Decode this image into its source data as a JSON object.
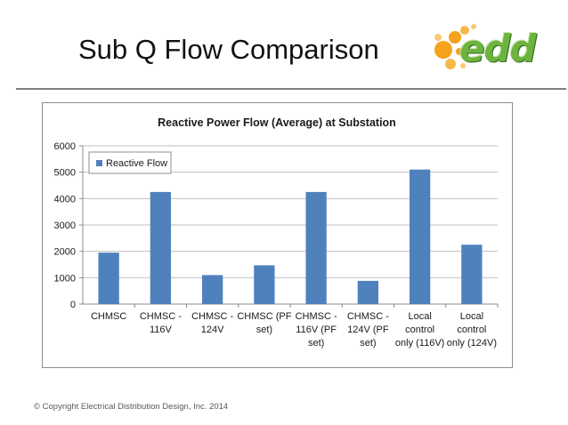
{
  "slide": {
    "title": "Sub Q Flow Comparison",
    "footer": "© Copyright Electrical Distribution Design, Inc. 2014"
  },
  "logo": {
    "text": "edd",
    "colors": {
      "dots": "#f5a21c",
      "letters": "#6db33f"
    }
  },
  "chart_data": {
    "type": "bar",
    "title": "Reactive Power Flow (Average) at Substation",
    "xlabel": "",
    "ylabel": "",
    "categories": [
      [
        "CHMSC"
      ],
      [
        "CHMSC -",
        "116V"
      ],
      [
        "CHMSC -",
        "124V"
      ],
      [
        "CHMSC (PF",
        "set)"
      ],
      [
        "CHMSC -",
        "116V (PF",
        "set)"
      ],
      [
        "CHMSC -",
        "124V (PF",
        "set)"
      ],
      [
        "Local",
        "control",
        "only (116V)"
      ],
      [
        "Local",
        "control",
        "only (124V)"
      ]
    ],
    "series": [
      {
        "name": "Reactive Flow",
        "values": [
          1950,
          4250,
          1100,
          1470,
          4250,
          880,
          5100,
          2250
        ],
        "color": "#4f81bd"
      }
    ],
    "ylim": [
      0,
      6000
    ],
    "yticks": [
      0,
      1000,
      2000,
      3000,
      4000,
      5000,
      6000
    ],
    "grid": true,
    "legend": "top-left"
  }
}
